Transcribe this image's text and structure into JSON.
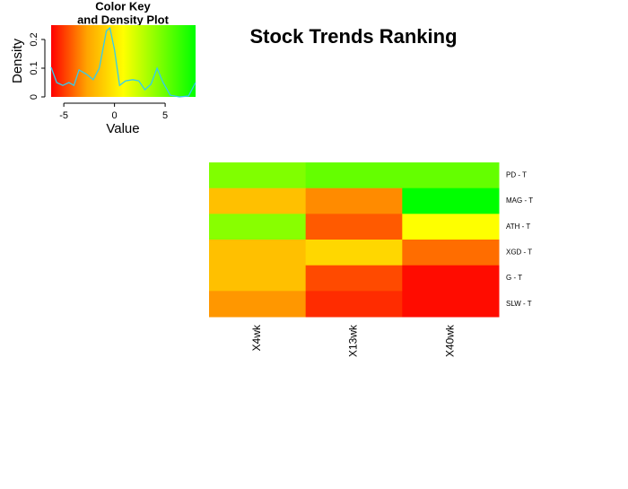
{
  "chart_data": {
    "type": "heatmap",
    "title": "Stock Trends Ranking",
    "columns": [
      "X4wk",
      "X13wk",
      "X40wk"
    ],
    "rows": [
      "PD - T",
      "MAG - T",
      "ATH - T",
      "XGD - T",
      "G - T",
      "SLW - T"
    ],
    "values": [
      [
        4.4,
        5.2,
        5.2
      ],
      [
        -1.6,
        -3.25,
        8
      ],
      [
        4.2,
        -4.3,
        0.9
      ],
      [
        -1.6,
        -0.7,
        -3.9
      ],
      [
        -1.6,
        -4.65,
        -6
      ],
      [
        -3.0,
        -5.3,
        -6
      ]
    ],
    "colors": [
      "#ff0000",
      "#ffa500",
      "#ffff00",
      "#7fff00",
      "#00ff00"
    ],
    "key": {
      "title": [
        "Color Key",
        "and Density Plot"
      ],
      "xlabel": "Value",
      "ylabel": "Density",
      "xlim": [
        -6.25,
        8
      ],
      "xticks": [
        -5,
        0,
        5
      ],
      "ylim": [
        0,
        0.25
      ],
      "yticks": [
        0,
        0.1,
        0.2
      ],
      "line_color": "#33ccee",
      "x": [
        -6.25,
        -5.7,
        -5.1,
        -4.5,
        -4,
        -3.5,
        -2.8,
        -2.1,
        -1.5,
        -0.8,
        -0.45,
        0,
        0.5,
        1.1,
        1.8,
        2.4,
        3,
        3.6,
        4.2,
        4.8,
        5.5,
        6.4,
        7.3,
        8
      ],
      "y": [
        0.103,
        0.05,
        0.04,
        0.05,
        0.04,
        0.094,
        0.08,
        0.06,
        0.1,
        0.23,
        0.24,
        0.165,
        0.04,
        0.056,
        0.06,
        0.056,
        0.025,
        0.044,
        0.1,
        0.05,
        0.006,
        0,
        0.003,
        0.05
      ]
    }
  }
}
